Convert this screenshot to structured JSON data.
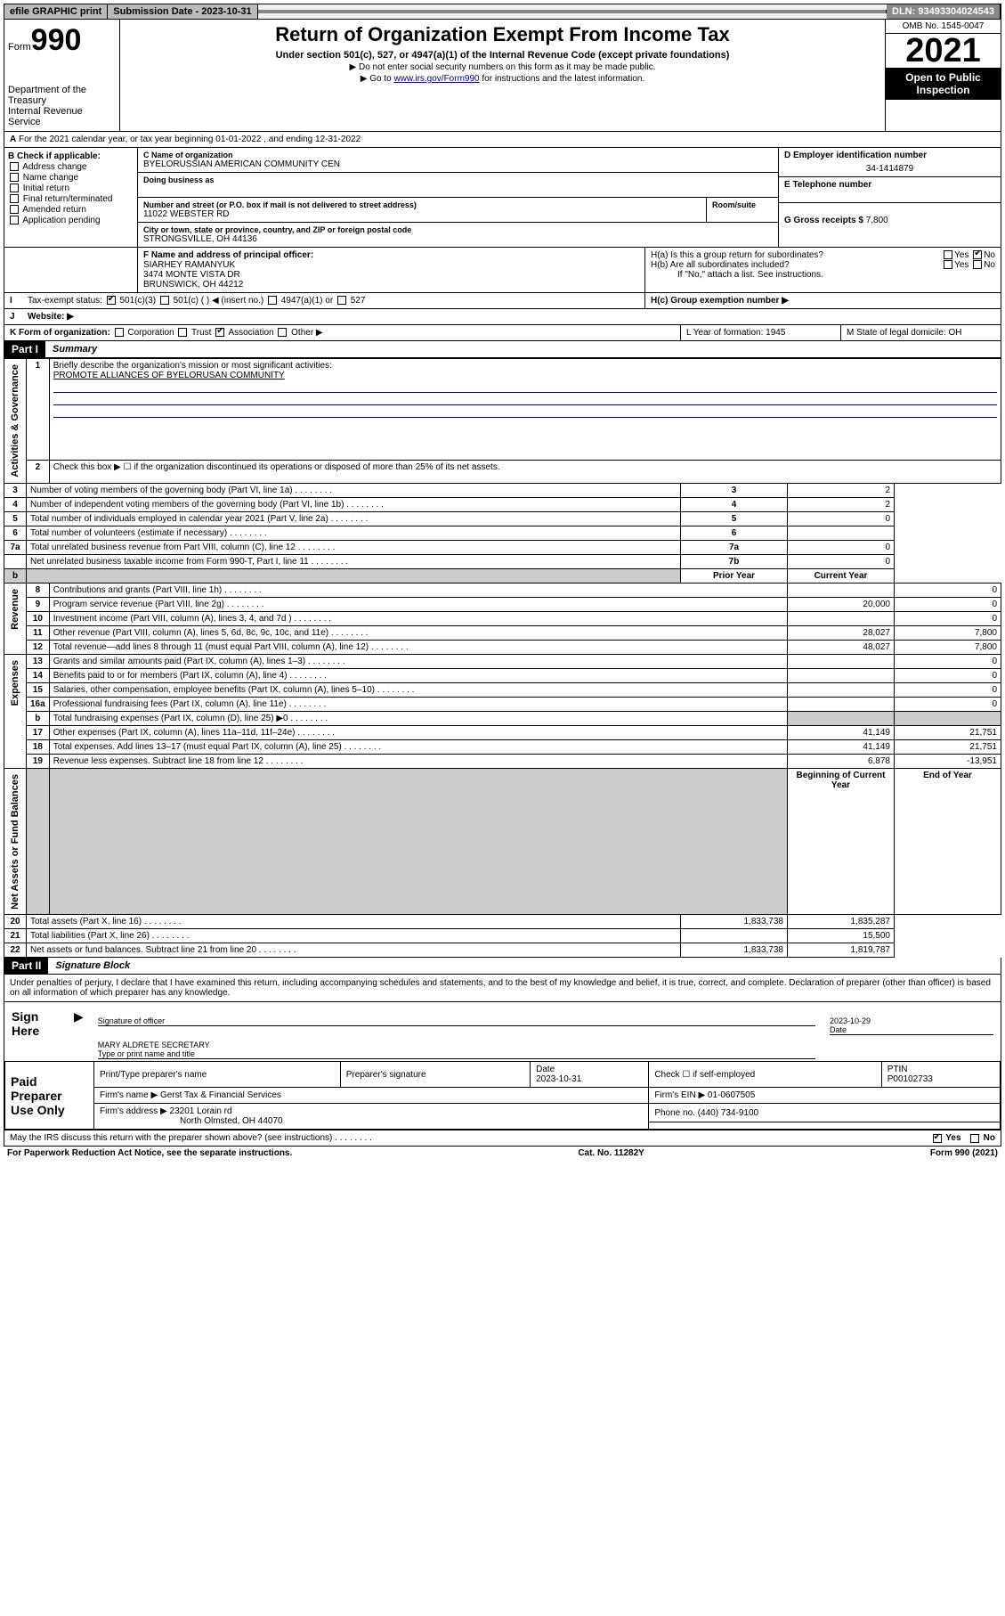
{
  "topbar": {
    "efile": "efile GRAPHIC print",
    "sub_label": "Submission Date - 2023-10-31",
    "dln": "DLN: 93493304024543"
  },
  "header": {
    "form_prefix": "Form",
    "form_number": "990",
    "dept": "Department of the Treasury",
    "irs": "Internal Revenue Service",
    "title": "Return of Organization Exempt From Income Tax",
    "sub1": "Under section 501(c), 527, or 4947(a)(1) of the Internal Revenue Code (except private foundations)",
    "sub2": "▶ Do not enter social security numbers on this form as it may be made public.",
    "sub3_a": "▶ Go to ",
    "sub3_link": "www.irs.gov/Form990",
    "sub3_b": " for instructions and the latest information.",
    "omb": "OMB No. 1545-0047",
    "year": "2021",
    "open": "Open to Public Inspection"
  },
  "period": {
    "a_line": "For the 2021 calendar year, or tax year beginning 01-01-2022  , and ending 12-31-2022"
  },
  "checkB": {
    "hdr": "B Check if applicable:",
    "items": [
      "Address change",
      "Name change",
      "Initial return",
      "Final return/terminated",
      "Amended return",
      "Application pending"
    ]
  },
  "blockC": {
    "c_label": "C Name of organization",
    "name": "BYELORUSSIAN AMERICAN COMMUNITY CEN",
    "dba_label": "Doing business as",
    "addr_label": "Number and street (or P.O. box if mail is not delivered to street address)",
    "room_label": "Room/suite",
    "street": "11022 WEBSTER RD",
    "city_label": "City or town, state or province, country, and ZIP or foreign postal code",
    "city": "STRONGSVILLE, OH  44136"
  },
  "blockD": {
    "d_label": "D Employer identification number",
    "ein": "34-1414879",
    "e_label": "E Telephone number",
    "g_label": "G Gross receipts $",
    "g_val": "7,800"
  },
  "blockF": {
    "f_label": "F  Name and address of principal officer:",
    "name": "SIARHEY RAMANYUK",
    "addr1": "3474 MONTE VISTA DR",
    "addr2": "BRUNSWICK, OH  44212"
  },
  "blockH": {
    "ha": "H(a)  Is this a group return for subordinates?",
    "hb": "H(b)  Are all subordinates included?",
    "hb_note": "If \"No,\" attach a list. See instructions.",
    "hc": "H(c)  Group exemption number ▶",
    "yes": "Yes",
    "no": "No"
  },
  "rowI": {
    "label": "Tax-exempt status:",
    "o1": "501(c)(3)",
    "o2": "501(c) (  ) ◀ (insert no.)",
    "o3": "4947(a)(1) or",
    "o4": "527"
  },
  "rowJ": {
    "label": "Website: ▶"
  },
  "rowK": {
    "label": "K Form of organization:",
    "opts": [
      "Corporation",
      "Trust",
      "Association",
      "Other ▶"
    ],
    "l": "L Year of formation: 1945",
    "m": "M State of legal domicile: OH"
  },
  "part1": {
    "hdr": "Part I",
    "title": "Summary",
    "q1": "Briefly describe the organization's mission or most significant activities:",
    "mission": "PROMOTE ALLIANCES OF BYELORUSAN COMMUNITY",
    "q2": "Check this box ▶ ☐  if the organization discontinued its operations or disposed of more than 25% of its net assets.",
    "rows_gov": [
      {
        "n": "3",
        "t": "Number of voting members of the governing body (Part VI, line 1a)",
        "vn": "3",
        "v": "2"
      },
      {
        "n": "4",
        "t": "Number of independent voting members of the governing body (Part VI, line 1b)",
        "vn": "4",
        "v": "2"
      },
      {
        "n": "5",
        "t": "Total number of individuals employed in calendar year 2021 (Part V, line 2a)",
        "vn": "5",
        "v": "0"
      },
      {
        "n": "6",
        "t": "Total number of volunteers (estimate if necessary)",
        "vn": "6",
        "v": ""
      },
      {
        "n": "7a",
        "t": "Total unrelated business revenue from Part VIII, column (C), line 12",
        "vn": "7a",
        "v": "0"
      },
      {
        "n": "",
        "t": "Net unrelated business taxable income from Form 990-T, Part I, line 11",
        "vn": "7b",
        "v": "0"
      }
    ],
    "col_prior": "Prior Year",
    "col_curr": "Current Year",
    "rows_rev": [
      {
        "n": "8",
        "t": "Contributions and grants (Part VIII, line 1h)",
        "p": "",
        "c": "0"
      },
      {
        "n": "9",
        "t": "Program service revenue (Part VIII, line 2g)",
        "p": "20,000",
        "c": "0"
      },
      {
        "n": "10",
        "t": "Investment income (Part VIII, column (A), lines 3, 4, and 7d )",
        "p": "",
        "c": "0"
      },
      {
        "n": "11",
        "t": "Other revenue (Part VIII, column (A), lines 5, 6d, 8c, 9c, 10c, and 11e)",
        "p": "28,027",
        "c": "7,800"
      },
      {
        "n": "12",
        "t": "Total revenue—add lines 8 through 11 (must equal Part VIII, column (A), line 12)",
        "p": "48,027",
        "c": "7,800"
      }
    ],
    "rows_exp": [
      {
        "n": "13",
        "t": "Grants and similar amounts paid (Part IX, column (A), lines 1–3)",
        "p": "",
        "c": "0"
      },
      {
        "n": "14",
        "t": "Benefits paid to or for members (Part IX, column (A), line 4)",
        "p": "",
        "c": "0"
      },
      {
        "n": "15",
        "t": "Salaries, other compensation, employee benefits (Part IX, column (A), lines 5–10)",
        "p": "",
        "c": "0"
      },
      {
        "n": "16a",
        "t": "Professional fundraising fees (Part IX, column (A), line 11e)",
        "p": "",
        "c": "0"
      },
      {
        "n": "b",
        "t": "Total fundraising expenses (Part IX, column (D), line 25) ▶0",
        "p": "grey",
        "c": "grey"
      },
      {
        "n": "17",
        "t": "Other expenses (Part IX, column (A), lines 11a–11d, 11f–24e)",
        "p": "41,149",
        "c": "21,751"
      },
      {
        "n": "18",
        "t": "Total expenses. Add lines 13–17 (must equal Part IX, column (A), line 25)",
        "p": "41,149",
        "c": "21,751"
      },
      {
        "n": "19",
        "t": "Revenue less expenses. Subtract line 18 from line 12",
        "p": "6,878",
        "c": "-13,951"
      }
    ],
    "col_beg": "Beginning of Current Year",
    "col_end": "End of Year",
    "rows_na": [
      {
        "n": "20",
        "t": "Total assets (Part X, line 16)",
        "p": "1,833,738",
        "c": "1,835,287"
      },
      {
        "n": "21",
        "t": "Total liabilities (Part X, line 26)",
        "p": "",
        "c": "15,500"
      },
      {
        "n": "22",
        "t": "Net assets or fund balances. Subtract line 21 from line 20",
        "p": "1,833,738",
        "c": "1,819,787"
      }
    ],
    "side_gov": "Activities & Governance",
    "side_rev": "Revenue",
    "side_exp": "Expenses",
    "side_na": "Net Assets or Fund Balances"
  },
  "part2": {
    "hdr": "Part II",
    "title": "Signature Block",
    "decl": "Under penalties of perjury, I declare that I have examined this return, including accompanying schedules and statements, and to the best of my knowledge and belief, it is true, correct, and complete. Declaration of preparer (other than officer) is based on all information of which preparer has any knowledge.",
    "sign_here": "Sign Here",
    "sig_off": "Signature of officer",
    "date": "Date",
    "sig_date": "2023-10-29",
    "name_title": "MARY ALDRETE  SECRETARY",
    "type_name": "Type or print name and title",
    "paid": "Paid Preparer Use Only",
    "prep_name_h": "Print/Type preparer's name",
    "prep_sig_h": "Preparer's signature",
    "date_h": "Date",
    "prep_date": "2023-10-31",
    "check_h": "Check ☐ if self-employed",
    "ptin_h": "PTIN",
    "ptin": "P00102733",
    "firm_name_h": "Firm's name    ▶",
    "firm_name": "Gerst Tax & Financial Services",
    "firm_ein_h": "Firm's EIN ▶",
    "firm_ein": "01-0607505",
    "firm_addr_h": "Firm's address ▶",
    "firm_addr1": "23201 Lorain rd",
    "firm_addr2": "North Olmsted, OH  44070",
    "phone_h": "Phone no.",
    "phone": "(440) 734-9100",
    "discuss": "May the IRS discuss this return with the preparer shown above? (see instructions)"
  },
  "footer": {
    "left": "For Paperwork Reduction Act Notice, see the separate instructions.",
    "mid": "Cat. No. 11282Y",
    "right": "Form 990 (2021)"
  }
}
